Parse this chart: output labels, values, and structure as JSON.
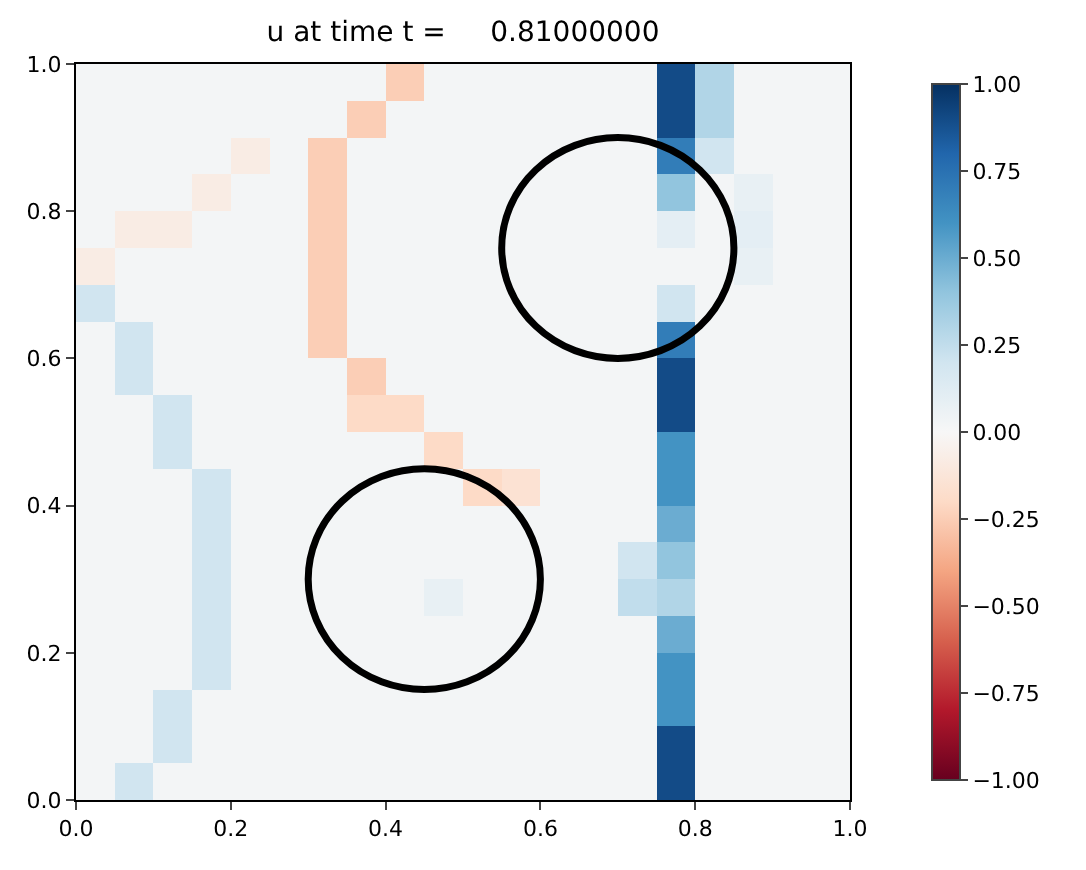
{
  "chart_data": {
    "type": "heatmap",
    "title": "u at time t =     0.81000000",
    "xlim": [
      0,
      1
    ],
    "ylim": [
      0,
      1
    ],
    "xticks": [
      {
        "value": 0,
        "label": "0.0"
      },
      {
        "value": 0.2,
        "label": "0.2"
      },
      {
        "value": 0.4,
        "label": "0.4"
      },
      {
        "value": 0.6,
        "label": "0.6"
      },
      {
        "value": 0.8,
        "label": "0.8"
      },
      {
        "value": 1,
        "label": "1.0"
      }
    ],
    "yticks": [
      {
        "value": 0,
        "label": "0.0"
      },
      {
        "value": 0.2,
        "label": "0.2"
      },
      {
        "value": 0.4,
        "label": "0.4"
      },
      {
        "value": 0.6,
        "label": "0.6"
      },
      {
        "value": 0.8,
        "label": "0.8"
      },
      {
        "value": 1,
        "label": "1.0"
      }
    ],
    "clim": [
      -1,
      1
    ],
    "cticks": [
      {
        "value": -1,
        "label": "−1.00"
      },
      {
        "value": -0.75,
        "label": "−0.75"
      },
      {
        "value": -0.5,
        "label": "−0.50"
      },
      {
        "value": -0.25,
        "label": "−0.25"
      },
      {
        "value": 0,
        "label": "0.00"
      },
      {
        "value": 0.25,
        "label": "0.25"
      },
      {
        "value": 0.5,
        "label": "0.50"
      },
      {
        "value": 0.75,
        "label": "0.75"
      },
      {
        "value": 1,
        "label": "1.00"
      }
    ],
    "cells": [
      [
        0.02,
        0.02,
        0.02,
        0.02,
        0.02,
        0.02,
        0.02,
        0.02,
        -0.25,
        0.02,
        0.02,
        0.02,
        0.02,
        0.02,
        0.02,
        0.9,
        0.3,
        0.02,
        0.02,
        0.02
      ],
      [
        0.02,
        0.02,
        0.02,
        0.02,
        0.02,
        0.02,
        0.02,
        -0.25,
        0.02,
        0.02,
        0.02,
        0.02,
        0.02,
        0.02,
        0.02,
        0.9,
        0.3,
        0.02,
        0.02,
        0.02
      ],
      [
        0.02,
        0.02,
        0.02,
        0.02,
        -0.08,
        0.02,
        -0.25,
        0.02,
        0.02,
        0.02,
        0.02,
        0.02,
        0.02,
        0.02,
        0.02,
        0.7,
        0.2,
        0.02,
        0.02,
        0.02
      ],
      [
        0.02,
        0.02,
        0.02,
        -0.08,
        0.02,
        0.02,
        -0.25,
        0.02,
        0.02,
        0.02,
        0.02,
        0.02,
        0.02,
        0.02,
        0.02,
        0.4,
        0.02,
        0.08,
        0.02,
        0.02
      ],
      [
        0.02,
        -0.08,
        -0.08,
        0.02,
        0.02,
        0.02,
        -0.25,
        0.02,
        0.02,
        0.02,
        0.02,
        0.02,
        0.02,
        0.02,
        0.02,
        0.1,
        0.02,
        0.1,
        0.02,
        0.02
      ],
      [
        -0.08,
        0.02,
        0.02,
        0.02,
        0.02,
        0.02,
        -0.25,
        0.02,
        0.02,
        0.02,
        0.02,
        0.02,
        0.02,
        0.02,
        0.02,
        0.02,
        0.02,
        0.08,
        0.02,
        0.02
      ],
      [
        0.2,
        0.02,
        0.02,
        0.02,
        0.02,
        0.02,
        -0.25,
        0.02,
        0.02,
        0.02,
        0.02,
        0.02,
        0.02,
        0.02,
        0.02,
        0.2,
        0.02,
        0.02,
        0.02,
        0.02
      ],
      [
        0.02,
        0.2,
        0.02,
        0.02,
        0.02,
        0.02,
        -0.25,
        0.02,
        0.02,
        0.02,
        0.02,
        0.02,
        0.02,
        0.02,
        0.02,
        0.7,
        0.02,
        0.02,
        0.02,
        0.02
      ],
      [
        0.02,
        0.2,
        0.02,
        0.02,
        0.02,
        0.02,
        0.02,
        -0.25,
        0.02,
        0.02,
        0.02,
        0.02,
        0.02,
        0.02,
        0.02,
        0.9,
        0.02,
        0.02,
        0.02,
        0.02
      ],
      [
        0.02,
        0.02,
        0.2,
        0.02,
        0.02,
        0.02,
        0.02,
        -0.2,
        -0.2,
        0.02,
        0.02,
        0.02,
        0.02,
        0.02,
        0.02,
        0.9,
        0.02,
        0.02,
        0.02,
        0.02
      ],
      [
        0.02,
        0.02,
        0.2,
        0.02,
        0.02,
        0.02,
        0.02,
        0.02,
        0.02,
        -0.2,
        0.02,
        0.02,
        0.02,
        0.02,
        0.02,
        0.6,
        0.02,
        0.02,
        0.02,
        0.02
      ],
      [
        0.02,
        0.02,
        0.02,
        0.2,
        0.02,
        0.02,
        0.02,
        0.02,
        0.02,
        0.02,
        -0.2,
        -0.15,
        0.02,
        0.02,
        0.02,
        0.6,
        0.02,
        0.02,
        0.02,
        0.02
      ],
      [
        0.02,
        0.02,
        0.02,
        0.2,
        0.02,
        0.02,
        0.02,
        0.02,
        0.02,
        0.02,
        0.02,
        0.02,
        0.02,
        0.02,
        0.02,
        0.5,
        0.02,
        0.02,
        0.02,
        0.02
      ],
      [
        0.02,
        0.02,
        0.02,
        0.2,
        0.02,
        0.02,
        0.02,
        0.02,
        0.02,
        0.02,
        0.02,
        0.02,
        0.02,
        0.02,
        0.2,
        0.4,
        0.02,
        0.02,
        0.02,
        0.02
      ],
      [
        0.02,
        0.02,
        0.02,
        0.2,
        0.02,
        0.02,
        0.02,
        0.02,
        0.02,
        0.08,
        0.02,
        0.02,
        0.02,
        0.02,
        0.25,
        0.3,
        0.02,
        0.02,
        0.02,
        0.02
      ],
      [
        0.02,
        0.02,
        0.02,
        0.2,
        0.02,
        0.02,
        0.02,
        0.02,
        0.02,
        0.02,
        0.02,
        0.02,
        0.02,
        0.02,
        0.02,
        0.5,
        0.02,
        0.02,
        0.02,
        0.02
      ],
      [
        0.02,
        0.02,
        0.02,
        0.2,
        0.02,
        0.02,
        0.02,
        0.02,
        0.02,
        0.02,
        0.02,
        0.02,
        0.02,
        0.02,
        0.02,
        0.6,
        0.02,
        0.02,
        0.02,
        0.02
      ],
      [
        0.02,
        0.02,
        0.2,
        0.02,
        0.02,
        0.02,
        0.02,
        0.02,
        0.02,
        0.02,
        0.02,
        0.02,
        0.02,
        0.02,
        0.02,
        0.6,
        0.02,
        0.02,
        0.02,
        0.02
      ],
      [
        0.02,
        0.02,
        0.2,
        0.02,
        0.02,
        0.02,
        0.02,
        0.02,
        0.02,
        0.02,
        0.02,
        0.02,
        0.02,
        0.02,
        0.02,
        0.9,
        0.02,
        0.02,
        0.02,
        0.02
      ],
      [
        0.02,
        0.2,
        0.02,
        0.02,
        0.02,
        0.02,
        0.02,
        0.02,
        0.02,
        0.02,
        0.02,
        0.02,
        0.02,
        0.02,
        0.02,
        0.9,
        0.02,
        0.02,
        0.02,
        0.02
      ]
    ]
  }
}
